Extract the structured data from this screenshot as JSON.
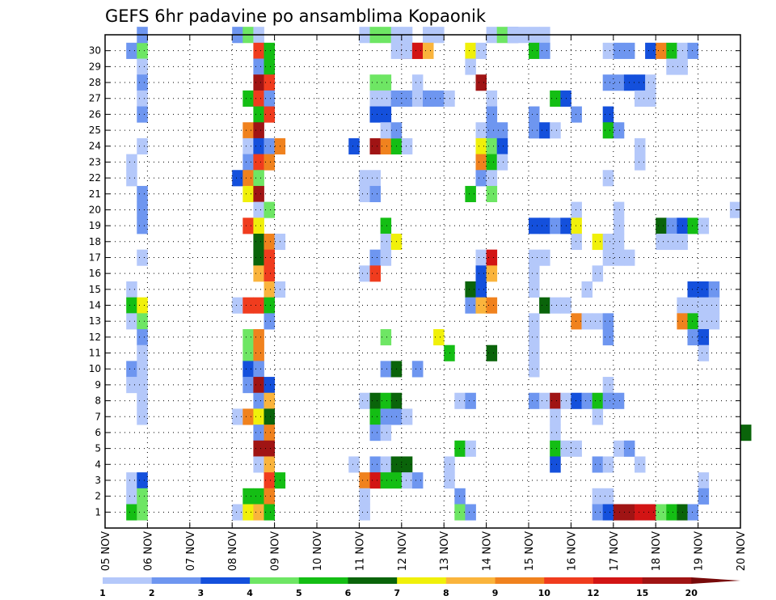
{
  "chart_data": {
    "type": "heatmap",
    "title": "GEFS 6hr padavine po ansamblima Kopaonik",
    "xlabel": "",
    "ylabel": "",
    "y_categories": [
      "1",
      "2",
      "3",
      "4",
      "5",
      "6",
      "7",
      "8",
      "9",
      "10",
      "11",
      "12",
      "13",
      "14",
      "15",
      "16",
      "17",
      "18",
      "19",
      "20",
      "21",
      "22",
      "23",
      "24",
      "25",
      "26",
      "27",
      "28",
      "29",
      "30"
    ],
    "x_tick_labels": [
      "05 NOV",
      "06 NOV",
      "07 NOV",
      "08 NOV",
      "09 NOV",
      "10 NOV",
      "11 NOV",
      "12 NOV",
      "13 NOV",
      "14 NOV",
      "15 NOV",
      "16 NOV",
      "17 NOV",
      "18 NOV",
      "19 NOV",
      "20 NOV"
    ],
    "x_steps_per_day": 4,
    "colorbar": {
      "levels": [
        "1",
        "2",
        "3",
        "4",
        "5",
        "6",
        "7",
        "8",
        "9",
        "10",
        "12",
        "15",
        "20"
      ],
      "colors": [
        "#b4c8fa",
        "#6e96f0",
        "#1450dc",
        "#6ee664",
        "#14be14",
        "#0a640a",
        "#f0f00a",
        "#fab43c",
        "#f0821e",
        "#f03c1e",
        "#d21414",
        "#a01414",
        "#780a0a"
      ]
    },
    "grid": true,
    "cells": [
      [
        29,
        2,
        1
      ],
      [
        29,
        3,
        3
      ],
      [
        30,
        3,
        1
      ],
      [
        28,
        3,
        0
      ],
      [
        27,
        3,
        1
      ],
      [
        26,
        3,
        0
      ],
      [
        25,
        3,
        1
      ],
      [
        23,
        3,
        0
      ],
      [
        22,
        2,
        0
      ],
      [
        21,
        2,
        0
      ],
      [
        20,
        3,
        1
      ],
      [
        19,
        3,
        1
      ],
      [
        18,
        3,
        1
      ],
      [
        16,
        3,
        0
      ],
      [
        14,
        2,
        0
      ],
      [
        13,
        2,
        4
      ],
      [
        13,
        3,
        6
      ],
      [
        12,
        2,
        0
      ],
      [
        12,
        3,
        3
      ],
      [
        11,
        3,
        1
      ],
      [
        10,
        3,
        0
      ],
      [
        9,
        2,
        1
      ],
      [
        9,
        3,
        0
      ],
      [
        8,
        2,
        0
      ],
      [
        8,
        3,
        0
      ],
      [
        7,
        3,
        0
      ],
      [
        6,
        3,
        0
      ],
      [
        2,
        2,
        0
      ],
      [
        2,
        3,
        2
      ],
      [
        1,
        2,
        0
      ],
      [
        1,
        3,
        3
      ],
      [
        0,
        2,
        4
      ],
      [
        0,
        3,
        3
      ],
      [
        30,
        12,
        1
      ],
      [
        30,
        13,
        3
      ],
      [
        30,
        14,
        0
      ],
      [
        29,
        14,
        9
      ],
      [
        29,
        15,
        4
      ],
      [
        28,
        14,
        1
      ],
      [
        28,
        15,
        4
      ],
      [
        27,
        14,
        11
      ],
      [
        27,
        15,
        9
      ],
      [
        26,
        13,
        4
      ],
      [
        26,
        14,
        9
      ],
      [
        26,
        15,
        1
      ],
      [
        25,
        14,
        4
      ],
      [
        25,
        15,
        9
      ],
      [
        24,
        13,
        8
      ],
      [
        24,
        14,
        11
      ],
      [
        23,
        13,
        0
      ],
      [
        23,
        14,
        2
      ],
      [
        23,
        15,
        1
      ],
      [
        23,
        16,
        8
      ],
      [
        22,
        13,
        1
      ],
      [
        22,
        14,
        9
      ],
      [
        22,
        15,
        8
      ],
      [
        21,
        12,
        2
      ],
      [
        21,
        13,
        8
      ],
      [
        21,
        14,
        3
      ],
      [
        20,
        13,
        6
      ],
      [
        20,
        14,
        11
      ],
      [
        19,
        14,
        0
      ],
      [
        19,
        15,
        3
      ],
      [
        18,
        13,
        9
      ],
      [
        18,
        14,
        6
      ],
      [
        17,
        14,
        5
      ],
      [
        17,
        15,
        8
      ],
      [
        17,
        16,
        0
      ],
      [
        16,
        14,
        5
      ],
      [
        16,
        15,
        9
      ],
      [
        15,
        14,
        7
      ],
      [
        15,
        15,
        9
      ],
      [
        14,
        15,
        7
      ],
      [
        14,
        16,
        0
      ],
      [
        13,
        12,
        0
      ],
      [
        13,
        13,
        9
      ],
      [
        13,
        14,
        9
      ],
      [
        13,
        15,
        4
      ],
      [
        12,
        15,
        1
      ],
      [
        11,
        13,
        3
      ],
      [
        11,
        14,
        8
      ],
      [
        10,
        13,
        3
      ],
      [
        10,
        14,
        8
      ],
      [
        9,
        13,
        2
      ],
      [
        9,
        14,
        1
      ],
      [
        8,
        13,
        1
      ],
      [
        8,
        14,
        11
      ],
      [
        8,
        15,
        2
      ],
      [
        7,
        14,
        1
      ],
      [
        7,
        15,
        7
      ],
      [
        6,
        12,
        0
      ],
      [
        6,
        13,
        8
      ],
      [
        6,
        14,
        6
      ],
      [
        6,
        15,
        5
      ],
      [
        5,
        14,
        1
      ],
      [
        5,
        15,
        8
      ],
      [
        4,
        14,
        11
      ],
      [
        4,
        15,
        11
      ],
      [
        3,
        14,
        0
      ],
      [
        3,
        15,
        7
      ],
      [
        2,
        15,
        9
      ],
      [
        2,
        16,
        4
      ],
      [
        1,
        13,
        4
      ],
      [
        1,
        14,
        4
      ],
      [
        1,
        15,
        8
      ],
      [
        0,
        12,
        0
      ],
      [
        0,
        13,
        6
      ],
      [
        0,
        14,
        7
      ],
      [
        0,
        15,
        4
      ],
      [
        30,
        24,
        0
      ],
      [
        30,
        25,
        3
      ],
      [
        30,
        26,
        3
      ],
      [
        29,
        27,
        0
      ],
      [
        29,
        28,
        9
      ],
      [
        29,
        29,
        7
      ],
      [
        27,
        25,
        3
      ],
      [
        27,
        26,
        3
      ],
      [
        26,
        25,
        0
      ],
      [
        26,
        26,
        0
      ],
      [
        26,
        27,
        1
      ],
      [
        26,
        28,
        1
      ],
      [
        26,
        30,
        0
      ],
      [
        25,
        25,
        2
      ],
      [
        25,
        26,
        2
      ],
      [
        23,
        23,
        2
      ],
      [
        23,
        25,
        11
      ],
      [
        23,
        26,
        8
      ],
      [
        23,
        27,
        4
      ],
      [
        23,
        28,
        0
      ],
      [
        24,
        26,
        0
      ],
      [
        24,
        27,
        1
      ],
      [
        21,
        24,
        0
      ],
      [
        21,
        25,
        0
      ],
      [
        20,
        24,
        0
      ],
      [
        20,
        25,
        1
      ],
      [
        18,
        26,
        4
      ],
      [
        17,
        26,
        0
      ],
      [
        17,
        27,
        6
      ],
      [
        16,
        25,
        1
      ],
      [
        16,
        26,
        0
      ],
      [
        15,
        24,
        0
      ],
      [
        15,
        25,
        9
      ],
      [
        9,
        26,
        1
      ],
      [
        9,
        27,
        5
      ],
      [
        9,
        29,
        1
      ],
      [
        7,
        24,
        0
      ],
      [
        7,
        25,
        5
      ],
      [
        7,
        26,
        4
      ],
      [
        7,
        27,
        5
      ],
      [
        6,
        25,
        4
      ],
      [
        6,
        26,
        1
      ],
      [
        6,
        27,
        1
      ],
      [
        6,
        28,
        0
      ],
      [
        5,
        25,
        1
      ],
      [
        5,
        26,
        0
      ],
      [
        3,
        23,
        0
      ],
      [
        3,
        25,
        1
      ],
      [
        3,
        26,
        0
      ],
      [
        3,
        27,
        5
      ],
      [
        3,
        28,
        5
      ],
      [
        2,
        24,
        8
      ],
      [
        2,
        25,
        10
      ],
      [
        2,
        26,
        4
      ],
      [
        2,
        27,
        4
      ],
      [
        2,
        28,
        0
      ],
      [
        2,
        29,
        1
      ],
      [
        1,
        24,
        0
      ],
      [
        0,
        24,
        0
      ],
      [
        30,
        27,
        0
      ],
      [
        30,
        28,
        0
      ],
      [
        30,
        30,
        0
      ],
      [
        30,
        31,
        0
      ],
      [
        29,
        28,
        0
      ],
      [
        29,
        29,
        10
      ],
      [
        29,
        30,
        7
      ],
      [
        27,
        29,
        0
      ],
      [
        26,
        29,
        0
      ],
      [
        26,
        30,
        1
      ],
      [
        26,
        31,
        1
      ],
      [
        26,
        32,
        0
      ],
      [
        11,
        26,
        3
      ],
      [
        10,
        32,
        4
      ],
      [
        9,
        29,
        1
      ],
      [
        30,
        36,
        0
      ],
      [
        30,
        37,
        3
      ],
      [
        30,
        38,
        1
      ],
      [
        30,
        39,
        0
      ],
      [
        30,
        40,
        0
      ],
      [
        30,
        41,
        0
      ],
      [
        29,
        34,
        6
      ],
      [
        29,
        35,
        0
      ],
      [
        28,
        34,
        0
      ],
      [
        27,
        35,
        11
      ],
      [
        26,
        36,
        0
      ],
      [
        25,
        36,
        1
      ],
      [
        24,
        35,
        0
      ],
      [
        24,
        36,
        1
      ],
      [
        24,
        37,
        1
      ],
      [
        23,
        35,
        6
      ],
      [
        23,
        36,
        3
      ],
      [
        23,
        37,
        2
      ],
      [
        22,
        35,
        8
      ],
      [
        22,
        36,
        4
      ],
      [
        22,
        37,
        0
      ],
      [
        21,
        35,
        1
      ],
      [
        21,
        36,
        0
      ],
      [
        20,
        34,
        4
      ],
      [
        20,
        36,
        3
      ],
      [
        16,
        35,
        0
      ],
      [
        16,
        36,
        10
      ],
      [
        15,
        35,
        2
      ],
      [
        15,
        36,
        7
      ],
      [
        14,
        34,
        5
      ],
      [
        14,
        35,
        2
      ],
      [
        13,
        34,
        1
      ],
      [
        13,
        35,
        7
      ],
      [
        13,
        36,
        8
      ],
      [
        11,
        31,
        6
      ],
      [
        10,
        36,
        5
      ],
      [
        7,
        33,
        0
      ],
      [
        7,
        34,
        1
      ],
      [
        4,
        33,
        4
      ],
      [
        4,
        34,
        0
      ],
      [
        3,
        32,
        0
      ],
      [
        2,
        32,
        0
      ],
      [
        1,
        33,
        1
      ],
      [
        0,
        33,
        3
      ],
      [
        0,
        34,
        1
      ],
      [
        30,
        38,
        0
      ],
      [
        29,
        40,
        4
      ],
      [
        29,
        41,
        1
      ],
      [
        26,
        42,
        4
      ],
      [
        26,
        43,
        2
      ],
      [
        25,
        40,
        1
      ],
      [
        24,
        40,
        1
      ],
      [
        24,
        41,
        2
      ],
      [
        24,
        42,
        0
      ],
      [
        19,
        44,
        0
      ],
      [
        18,
        40,
        2
      ],
      [
        18,
        41,
        2
      ],
      [
        18,
        42,
        1
      ],
      [
        18,
        43,
        2
      ],
      [
        18,
        44,
        6
      ],
      [
        17,
        44,
        0
      ],
      [
        16,
        40,
        0
      ],
      [
        16,
        41,
        0
      ],
      [
        15,
        40,
        0
      ],
      [
        14,
        40,
        0
      ],
      [
        12,
        40,
        0
      ],
      [
        11,
        40,
        0
      ],
      [
        10,
        40,
        0
      ],
      [
        9,
        40,
        0
      ],
      [
        7,
        40,
        1
      ],
      [
        7,
        41,
        0
      ],
      [
        7,
        42,
        11
      ],
      [
        7,
        43,
        0
      ],
      [
        7,
        44,
        2
      ],
      [
        7,
        45,
        1
      ],
      [
        7,
        46,
        4
      ],
      [
        6,
        42,
        0
      ],
      [
        5,
        42,
        0
      ],
      [
        4,
        42,
        4
      ],
      [
        4,
        43,
        0
      ],
      [
        4,
        44,
        0
      ],
      [
        3,
        42,
        2
      ],
      [
        12,
        44,
        8
      ],
      [
        12,
        45,
        0
      ],
      [
        12,
        46,
        0
      ],
      [
        13,
        41,
        5
      ],
      [
        13,
        42,
        0
      ],
      [
        13,
        43,
        0
      ],
      [
        29,
        47,
        0
      ],
      [
        29,
        48,
        1
      ],
      [
        29,
        49,
        1
      ],
      [
        27,
        47,
        1
      ],
      [
        27,
        48,
        1
      ],
      [
        27,
        49,
        2
      ],
      [
        27,
        50,
        2
      ],
      [
        25,
        44,
        1
      ],
      [
        25,
        47,
        2
      ],
      [
        24,
        47,
        4
      ],
      [
        24,
        48,
        1
      ],
      [
        23,
        50,
        0
      ],
      [
        22,
        50,
        0
      ],
      [
        21,
        47,
        0
      ],
      [
        19,
        48,
        0
      ],
      [
        18,
        48,
        0
      ],
      [
        17,
        46,
        6
      ],
      [
        17,
        47,
        0
      ],
      [
        17,
        48,
        0
      ],
      [
        16,
        47,
        0
      ],
      [
        16,
        48,
        0
      ],
      [
        16,
        49,
        0
      ],
      [
        15,
        46,
        0
      ],
      [
        14,
        45,
        0
      ],
      [
        12,
        47,
        1
      ],
      [
        11,
        47,
        1
      ],
      [
        8,
        47,
        0
      ],
      [
        7,
        47,
        1
      ],
      [
        7,
        48,
        1
      ],
      [
        6,
        46,
        0
      ],
      [
        4,
        48,
        0
      ],
      [
        4,
        49,
        1
      ],
      [
        3,
        46,
        1
      ],
      [
        3,
        47,
        0
      ],
      [
        1,
        46,
        0
      ],
      [
        1,
        47,
        0
      ],
      [
        0,
        46,
        1
      ],
      [
        0,
        47,
        2
      ],
      [
        0,
        48,
        11
      ],
      [
        0,
        49,
        11
      ],
      [
        0,
        50,
        10
      ],
      [
        0,
        51,
        10
      ],
      [
        29,
        51,
        2
      ],
      [
        29,
        52,
        8
      ],
      [
        29,
        53,
        4
      ],
      [
        29,
        54,
        0
      ],
      [
        29,
        55,
        1
      ],
      [
        28,
        53,
        0
      ],
      [
        28,
        54,
        0
      ],
      [
        27,
        51,
        0
      ],
      [
        26,
        50,
        0
      ],
      [
        26,
        51,
        0
      ],
      [
        18,
        52,
        5
      ],
      [
        18,
        53,
        1
      ],
      [
        18,
        54,
        2
      ],
      [
        18,
        55,
        4
      ],
      [
        18,
        56,
        0
      ],
      [
        17,
        52,
        0
      ],
      [
        17,
        53,
        0
      ],
      [
        17,
        54,
        0
      ],
      [
        14,
        55,
        2
      ],
      [
        14,
        56,
        2
      ],
      [
        14,
        57,
        1
      ],
      [
        13,
        54,
        0
      ],
      [
        13,
        55,
        0
      ],
      [
        13,
        56,
        0
      ],
      [
        13,
        57,
        0
      ],
      [
        12,
        54,
        8
      ],
      [
        12,
        55,
        4
      ],
      [
        12,
        56,
        0
      ],
      [
        12,
        57,
        0
      ],
      [
        11,
        55,
        1
      ],
      [
        11,
        56,
        2
      ],
      [
        10,
        56,
        0
      ],
      [
        2,
        56,
        0
      ],
      [
        1,
        56,
        1
      ],
      [
        0,
        52,
        3
      ],
      [
        0,
        53,
        4
      ],
      [
        0,
        54,
        5
      ],
      [
        0,
        55,
        1
      ],
      [
        3,
        50,
        0
      ],
      [
        19,
        59,
        0
      ],
      [
        5,
        60,
        5
      ]
    ]
  }
}
